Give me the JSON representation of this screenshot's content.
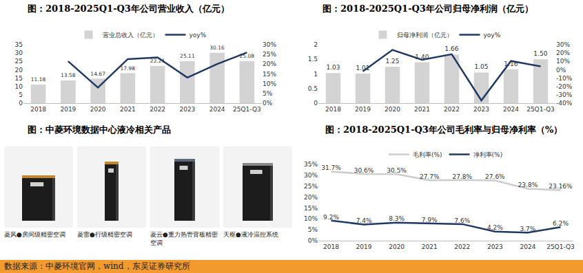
{
  "chart_data": [
    {
      "type": "bar",
      "title": "图：2018-2025Q1-Q3年公司营业收入（亿元）",
      "categories": [
        "2018",
        "2019",
        "2020",
        "2021",
        "2022",
        "2023",
        "2024",
        "25Q1-Q3"
      ],
      "series": [
        {
          "name": "营业总收入（亿元）",
          "type": "bar",
          "color": "#d3d3d3",
          "data_labels": true,
          "values": [
            11.18,
            13.58,
            14.67,
            17.98,
            22.21,
            25.11,
            30.16,
            25.08
          ]
        },
        {
          "name": "yoy%",
          "type": "line",
          "axis": "y2",
          "color": "#1f3864",
          "data_labels": false,
          "values": [
            null,
            21.5,
            8.0,
            22.6,
            23.5,
            13.1,
            20.1,
            26.0
          ]
        }
      ],
      "ylim": [
        0,
        35
      ],
      "yticks": [
        0,
        5,
        10,
        15,
        20,
        25,
        30,
        35
      ],
      "y2lim": [
        0,
        30
      ],
      "y2ticks": [
        {
          "value": 0,
          "label": "0%"
        },
        {
          "value": 5,
          "label": "5%"
        },
        {
          "value": 10,
          "label": "10%"
        },
        {
          "value": 15,
          "label": "15%"
        },
        {
          "value": 20,
          "label": "20%"
        },
        {
          "value": 25,
          "label": "25%"
        },
        {
          "value": 30,
          "label": "30%"
        }
      ],
      "grid": false,
      "legend": "top"
    },
    {
      "type": "bar",
      "title": "图：2018-2025Q1-Q3年公司归母净利润（亿元）",
      "categories": [
        "2018",
        "2019",
        "2020",
        "2021",
        "2022",
        "2023",
        "2024",
        "25Q1-Q3"
      ],
      "series": [
        {
          "name": "归母净利润（亿元）",
          "type": "bar",
          "color": "#d3d3d3",
          "data_labels": true,
          "values": [
            1.03,
            1.01,
            1.25,
            1.4,
            1.66,
            1.05,
            1.16,
            1.5
          ],
          "value_labels": [
            "1.03",
            "1.01",
            "1.25",
            "1.40",
            "1.66",
            "1.05",
            "1.16",
            "1.50"
          ]
        },
        {
          "name": "yoy%",
          "type": "line",
          "axis": "y2",
          "color": "#1f3864",
          "data_labels": false,
          "values": [
            null,
            -1.9,
            23.8,
            12.0,
            18.6,
            -36.7,
            10.5,
            4.0
          ]
        }
      ],
      "ylim": [
        0,
        2
      ],
      "yticks": [
        0,
        0.5,
        1,
        1.5,
        2
      ],
      "y2lim": [
        -40,
        30
      ],
      "y2ticks": [
        {
          "value": -40,
          "label": "-40%"
        },
        {
          "value": -30,
          "label": "-30%"
        },
        {
          "value": -20,
          "label": "-20%"
        },
        {
          "value": -10,
          "label": "-10%"
        },
        {
          "value": 0,
          "label": "0%"
        },
        {
          "value": 10,
          "label": "10%"
        },
        {
          "value": 20,
          "label": "20%"
        },
        {
          "value": 30,
          "label": "30%"
        }
      ],
      "grid": false,
      "legend": "top"
    },
    {
      "type": "line",
      "title": "图：2018-2025Q1-Q3年公司毛利率与归母净利率（%）",
      "categories": [
        "2018",
        "2019",
        "2020",
        "2021",
        "2022",
        "2023",
        "2024",
        "25Q1-Q3"
      ],
      "series": [
        {
          "name": "毛利率(%)",
          "type": "line",
          "color": "#cccccc",
          "data_labels": true,
          "values": [
            31.7,
            30.6,
            30.5,
            27.7,
            27.8,
            27.6,
            23.8,
            23.16
          ],
          "value_labels": [
            "31.7%",
            "30.6%",
            "30.5%",
            "27.7%",
            "27.8%",
            "27.6%",
            "23.8%",
            "23.16%"
          ]
        },
        {
          "name": "净利率(%)",
          "type": "line",
          "color": "#1f3864",
          "data_labels": true,
          "values": [
            9.2,
            7.4,
            8.3,
            7.9,
            7.6,
            4.2,
            3.7,
            6.2
          ],
          "value_labels": [
            "9.2%",
            "7.4%",
            "8.3%",
            "7.9%",
            "7.6%",
            "4.2%",
            "3.7%",
            "6.2%"
          ]
        }
      ],
      "ylim": [
        0,
        35
      ],
      "yticks": [
        {
          "value": 0,
          "label": "0%"
        },
        {
          "value": 5,
          "label": "5%"
        },
        {
          "value": 10,
          "label": "10%"
        },
        {
          "value": 15,
          "label": "15%"
        },
        {
          "value": 20,
          "label": "20%"
        },
        {
          "value": 25,
          "label": "25%"
        },
        {
          "value": 30,
          "label": "30%"
        },
        {
          "value": 35,
          "label": "35%"
        }
      ],
      "grid": false,
      "legend": "top"
    }
  ],
  "products": {
    "title": "图：中菱环境数据中心液冷相关产品",
    "items": [
      "菱风●房间级精密空调",
      "菱雷●行级精密空调",
      "菱云●重力热管背板精密空调",
      "天枢●液冷温控系统"
    ]
  },
  "source": "数据来源：中菱环境官网，wind，东吴证券研究所"
}
